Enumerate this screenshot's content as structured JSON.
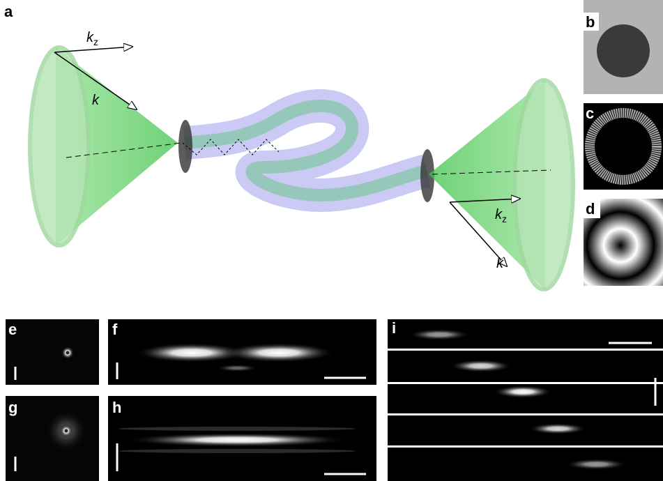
{
  "panels": [
    {
      "label": "a"
    },
    {
      "label": "b"
    },
    {
      "label": "c"
    },
    {
      "label": "d"
    },
    {
      "label": "e"
    },
    {
      "label": "f"
    },
    {
      "label": "g"
    },
    {
      "label": "h"
    },
    {
      "label": "i"
    }
  ],
  "annotations": [
    {
      "text": "k",
      "sub": "z"
    },
    {
      "text": "k"
    },
    {
      "text": "k",
      "sub": "z"
    },
    {
      "text": "k"
    }
  ]
}
